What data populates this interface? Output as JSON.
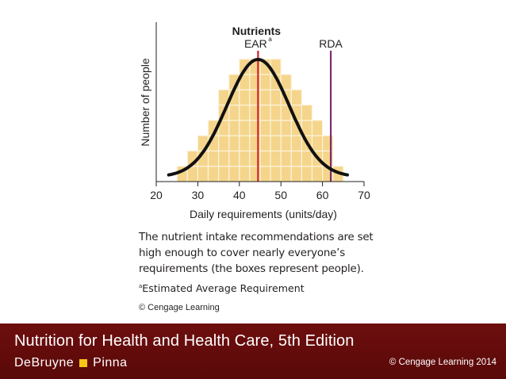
{
  "chart_data": {
    "type": "histogram",
    "title": "Nutrients",
    "xlabel": "Daily requirements (units/day)",
    "ylabel": "Number of people",
    "xlim": [
      20,
      70
    ],
    "xticks": [
      "20",
      "30",
      "40",
      "50",
      "60",
      "70"
    ],
    "bin_width": 2.5,
    "bins": [
      {
        "x0": 25.0,
        "count": 1
      },
      {
        "x0": 27.5,
        "count": 2
      },
      {
        "x0": 30.0,
        "count": 3
      },
      {
        "x0": 32.5,
        "count": 4
      },
      {
        "x0": 35.0,
        "count": 6
      },
      {
        "x0": 37.5,
        "count": 7
      },
      {
        "x0": 40.0,
        "count": 8
      },
      {
        "x0": 42.5,
        "count": 8
      },
      {
        "x0": 45.0,
        "count": 8
      },
      {
        "x0": 47.5,
        "count": 8
      },
      {
        "x0": 50.0,
        "count": 7
      },
      {
        "x0": 52.5,
        "count": 6
      },
      {
        "x0": 55.0,
        "count": 5
      },
      {
        "x0": 57.5,
        "count": 4
      },
      {
        "x0": 60.0,
        "count": 3
      },
      {
        "x0": 62.5,
        "count": 1
      }
    ],
    "curve": {
      "type": "normal",
      "mean": 44.5,
      "sd": 7.5
    },
    "markers": [
      {
        "label": "EAR",
        "superscript": "a",
        "x": 44.5,
        "color": "#d2232a"
      },
      {
        "label": "RDA",
        "superscript": "",
        "x": 62,
        "color": "#7b2d6e"
      }
    ],
    "colors": {
      "box_fill": "#f4d58b",
      "box_border": "#fdf3dc",
      "curve": "#111111"
    }
  },
  "caption": "The nutrient intake recommendations are set high enough to cover nearly everyone’s requirements (the boxes represent people).",
  "footnote": {
    "marker": "a",
    "text": "Estimated Average Requirement"
  },
  "credit": "© Cengage Learning",
  "footer": {
    "title": "Nutrition for Health and Health Care, 5th Edition",
    "author1": "DeBruyne",
    "author2": "Pinna",
    "separator_color": "#f5c518",
    "copyright": "© Cengage Learning 2014"
  }
}
